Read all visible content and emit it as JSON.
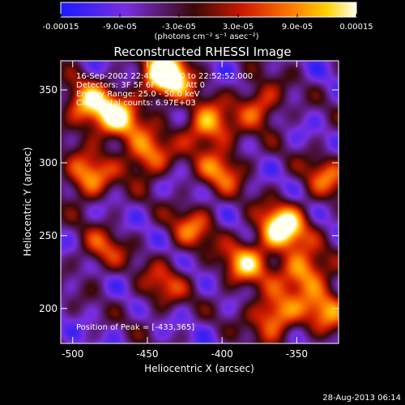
{
  "chart_data": {
    "type": "heatmap",
    "title": "Reconstructed RHESSI Image",
    "xlabel": "Heliocentric X (arcsec)",
    "ylabel": "Heliocentric Y (arcsec)",
    "xlim": [
      -508,
      -322
    ],
    "ylim": [
      176,
      370
    ],
    "x_ticks": [
      -500,
      -450,
      -400,
      -350
    ],
    "x_tick_labels": [
      "-500",
      "-450",
      "-400",
      "-350"
    ],
    "y_ticks": [
      200,
      250,
      300,
      350
    ],
    "y_tick_labels": [
      "200",
      "250",
      "300",
      "350"
    ],
    "colorbar": {
      "range": [
        -0.00015,
        0.00015
      ],
      "tick_labels": [
        "-0.00015",
        "-9.0e-05",
        "-3.0e-05",
        "3.0e-05",
        "9.0e-05",
        "0.00015"
      ],
      "units": "(photons cm⁻² s⁻¹ asec⁻²)",
      "colors": [
        "#1a1aff",
        "#7a2ee0",
        "#3a0808",
        "#d11a00",
        "#ff7a00",
        "#ffd200",
        "#fffff0"
      ]
    },
    "annotations": [
      "16-Sep-2002 22:48:44.000 to 22:52:52.000",
      "Detectors: 3F 5F 6F 7F 8F, Att 0",
      "Energy Range: 25.0 - 50.0 keV",
      "Clean   Total counts: 6.97E+03"
    ],
    "peak_label": "Position of Peak = [-433,365]",
    "peak": [
      -433,
      365
    ],
    "hotspots": [
      {
        "x": -437,
        "y": 360,
        "strength": 1.0
      },
      {
        "x": -470,
        "y": 330,
        "strength": 0.65
      },
      {
        "x": -490,
        "y": 340,
        "strength": 0.6
      },
      {
        "x": -410,
        "y": 325,
        "strength": 0.6
      },
      {
        "x": -450,
        "y": 305,
        "strength": 0.55
      },
      {
        "x": -375,
        "y": 340,
        "strength": 0.45
      },
      {
        "x": -490,
        "y": 290,
        "strength": 0.55
      },
      {
        "x": -360,
        "y": 255,
        "strength": 0.85
      },
      {
        "x": -345,
        "y": 225,
        "strength": 0.6
      },
      {
        "x": -385,
        "y": 230,
        "strength": 0.55
      },
      {
        "x": -365,
        "y": 195,
        "strength": 0.6
      },
      {
        "x": -330,
        "y": 200,
        "strength": 0.5
      },
      {
        "x": -420,
        "y": 255,
        "strength": 0.4
      },
      {
        "x": -480,
        "y": 240,
        "strength": 0.35
      },
      {
        "x": -440,
        "y": 215,
        "strength": 0.35
      },
      {
        "x": -400,
        "y": 295,
        "strength": 0.45
      },
      {
        "x": -330,
        "y": 290,
        "strength": 0.4
      }
    ]
  },
  "footer_date": "28-Aug-2013 06:14"
}
